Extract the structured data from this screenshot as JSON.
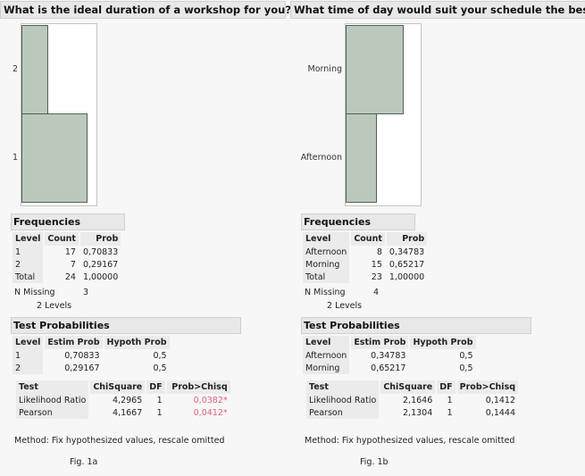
{
  "panels": [
    {
      "title": "What is the ideal duration of a workshop for you?",
      "chart": {
        "levels": [
          "2",
          "1"
        ],
        "counts": [
          7,
          17
        ],
        "max": 17
      },
      "freq": {
        "title": "Frequencies",
        "headers": [
          "Level",
          "Count",
          "Prob"
        ],
        "rows": [
          [
            "1",
            "17",
            "0,70833"
          ],
          [
            "2",
            "7",
            "0,29167"
          ],
          [
            "Total",
            "24",
            "1,00000"
          ]
        ],
        "n_missing_label": "N Missing",
        "n_missing": "3",
        "levels": "2  Levels"
      },
      "test": {
        "title": "Test Probabilities",
        "headers": [
          "Level",
          "Estim Prob",
          "Hypoth Prob"
        ],
        "rows": [
          [
            "1",
            "0,70833",
            "0,5"
          ],
          [
            "2",
            "0,29167",
            "0,5"
          ]
        ],
        "chi_headers": [
          "Test",
          "ChiSquare",
          "DF",
          "Prob>Chisq"
        ],
        "chi_rows": [
          [
            "Likelihood Ratio",
            "4,2965",
            "1",
            "0,0382*"
          ],
          [
            "Pearson",
            "4,1667",
            "1",
            "0,0412*"
          ]
        ],
        "significant": true
      },
      "method": "Method: Fix hypothesized values, rescale omitted",
      "fig": "Fig. 1a"
    },
    {
      "title": "What time of day would suit your schedule the best?",
      "chart": {
        "levels": [
          "Morning",
          "Afternoon"
        ],
        "counts": [
          15,
          8
        ],
        "max": 17
      },
      "freq": {
        "title": "Frequencies",
        "headers": [
          "Level",
          "Count",
          "Prob"
        ],
        "rows": [
          [
            "Afternoon",
            "8",
            "0,34783"
          ],
          [
            "Morning",
            "15",
            "0,65217"
          ],
          [
            "Total",
            "23",
            "1,00000"
          ]
        ],
        "n_missing_label": "N Missing",
        "n_missing": "4",
        "levels": "2  Levels"
      },
      "test": {
        "title": "Test Probabilities",
        "headers": [
          "Level",
          "Estim Prob",
          "Hypoth Prob"
        ],
        "rows": [
          [
            "Afternoon",
            "0,34783",
            "0,5"
          ],
          [
            "Morning",
            "0,65217",
            "0,5"
          ]
        ],
        "chi_headers": [
          "Test",
          "ChiSquare",
          "DF",
          "Prob>Chisq"
        ],
        "chi_rows": [
          [
            "Likelihood Ratio",
            "2,1646",
            "1",
            "0,1412"
          ],
          [
            "Pearson",
            "2,1304",
            "1",
            "0,1444"
          ]
        ],
        "significant": false
      },
      "method": "Method: Fix hypothesized values, rescale omitted",
      "fig": "Fig. 1b"
    }
  ],
  "colors": {
    "bar": "#bac9bb",
    "significant": "#e0607a"
  }
}
